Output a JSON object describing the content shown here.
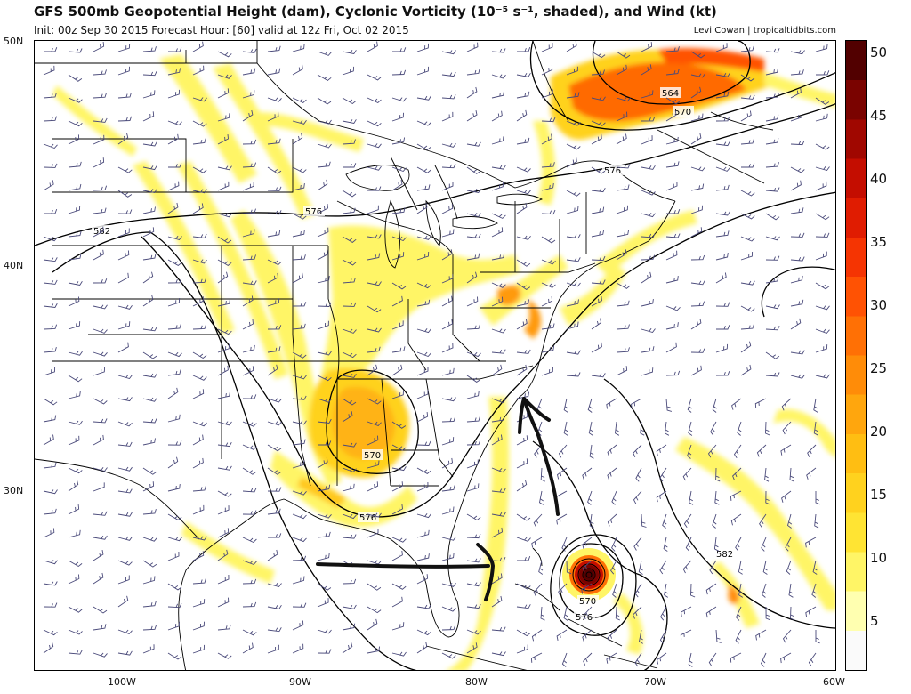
{
  "header": {
    "title": "GFS 500mb Geopotential Height (dam), Cyclonic Vorticity (10⁻⁵ s⁻¹, shaded), and Wind (kt)",
    "subtitle": "Init: 00z Sep 30 2015   Forecast Hour: [60]   valid at 12z Fri, Oct 02 2015",
    "credit": "Levi Cowan | tropicaltidbits.com"
  },
  "axes": {
    "lat_labels": [
      "50N",
      "40N",
      "30N"
    ],
    "lon_labels": [
      "100W",
      "90W",
      "80W",
      "70W",
      "60W"
    ]
  },
  "colorbar": {
    "labels": [
      "50",
      "45",
      "40",
      "35",
      "30",
      "25",
      "20",
      "15",
      "10",
      "5"
    ],
    "colors": [
      "#fafafa",
      "#ffffb0",
      "#fff566",
      "#ffe433",
      "#ffd21e",
      "#ffbe12",
      "#ffa60d",
      "#ff8c08",
      "#ff7005",
      "#ff5203",
      "#f53402",
      "#e01c01",
      "#c40d00",
      "#a00700",
      "#7a0300",
      "#520000"
    ]
  },
  "contours": {
    "labels": [
      "564",
      "570",
      "576",
      "576",
      "582",
      "570",
      "576",
      "582",
      "570",
      "576"
    ]
  },
  "colors": {
    "vort_light": "#fff566",
    "vort_mid": "#ffc81a",
    "vort_high": "#ff6a06",
    "vort_max": "#8a0500",
    "barb": "#4a4a7a",
    "annotation": "#111111"
  }
}
